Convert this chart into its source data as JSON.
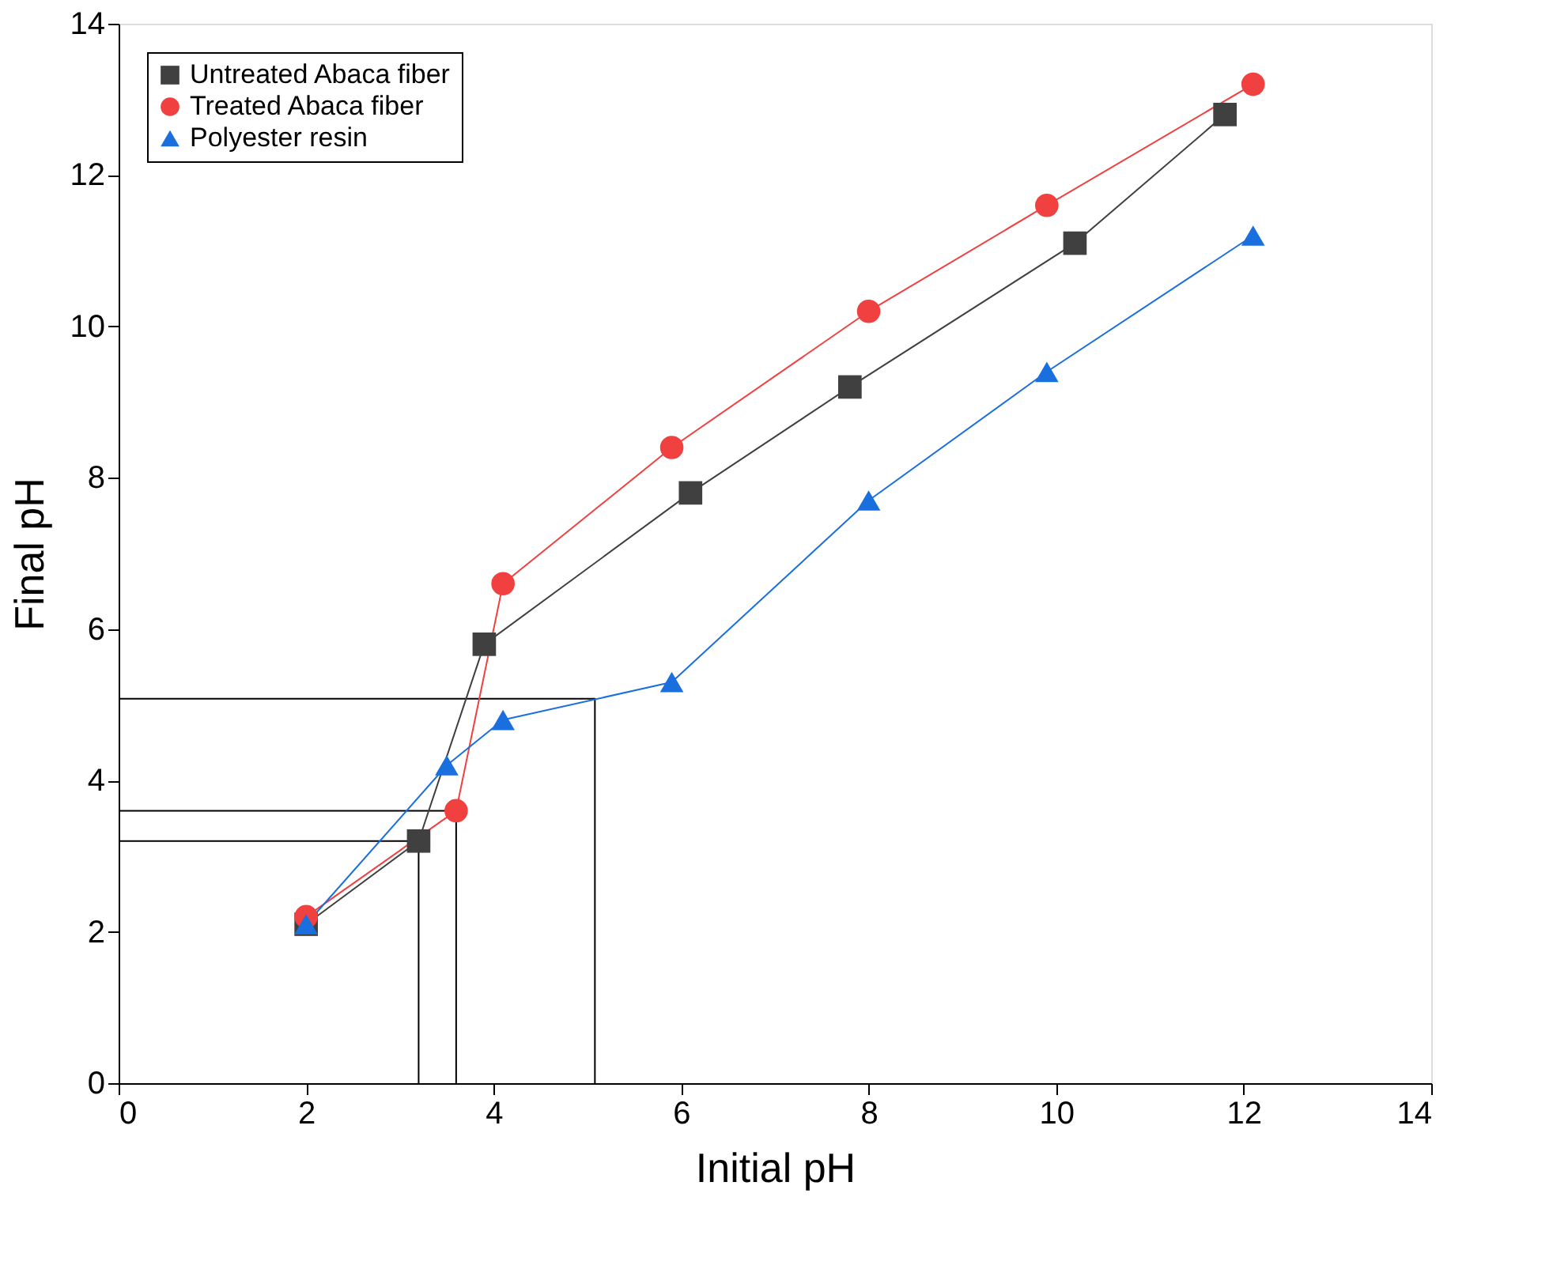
{
  "chart_data": {
    "type": "line",
    "xlabel": "Initial pH",
    "ylabel": "Final pH",
    "xlim": [
      0,
      14
    ],
    "ylim": [
      0,
      14
    ],
    "xticks": [
      0,
      2,
      4,
      6,
      8,
      10,
      12,
      14
    ],
    "yticks": [
      0,
      2,
      4,
      6,
      8,
      10,
      12,
      14
    ],
    "grid": false,
    "legend": "top left",
    "series": [
      {
        "name": "Untreated Abaca fiber",
        "color": "#404040",
        "marker": "square",
        "x": [
          2,
          3.2,
          3.9,
          6.1,
          7.8,
          10.2,
          11.8
        ],
        "values": [
          2.1,
          3.2,
          5.8,
          7.8,
          9.2,
          11.1,
          12.8
        ]
      },
      {
        "name": "Treated Abaca fiber",
        "color": "#f04040",
        "marker": "circle",
        "x": [
          2,
          3.6,
          4.1,
          5.9,
          8,
          9.9,
          12.1
        ],
        "values": [
          2.2,
          3.6,
          6.6,
          8.4,
          10.2,
          11.6,
          13.2
        ]
      },
      {
        "name": "Polyester resin",
        "color": "#1a6fdf",
        "marker": "triangle",
        "x": [
          2,
          3.5,
          4.1,
          5.9,
          8,
          9.9,
          12.1
        ],
        "values": [
          2.1,
          4.2,
          4.8,
          5.3,
          7.7,
          9.4,
          11.2
        ]
      },
      {
        "color": "#000000",
        "marker": "none",
        "x": [
          0,
          3.2,
          3.2
        ],
        "values": [
          3.2,
          3.2,
          0
        ]
      },
      {
        "color": "#000000",
        "marker": "none",
        "x": [
          0,
          3.6,
          3.6
        ],
        "values": [
          3.6,
          3.6,
          0
        ]
      },
      {
        "color": "#000000",
        "marker": "none",
        "x": [
          0,
          5.08,
          5.08
        ],
        "values": [
          5.08,
          5.08,
          0
        ]
      }
    ]
  }
}
